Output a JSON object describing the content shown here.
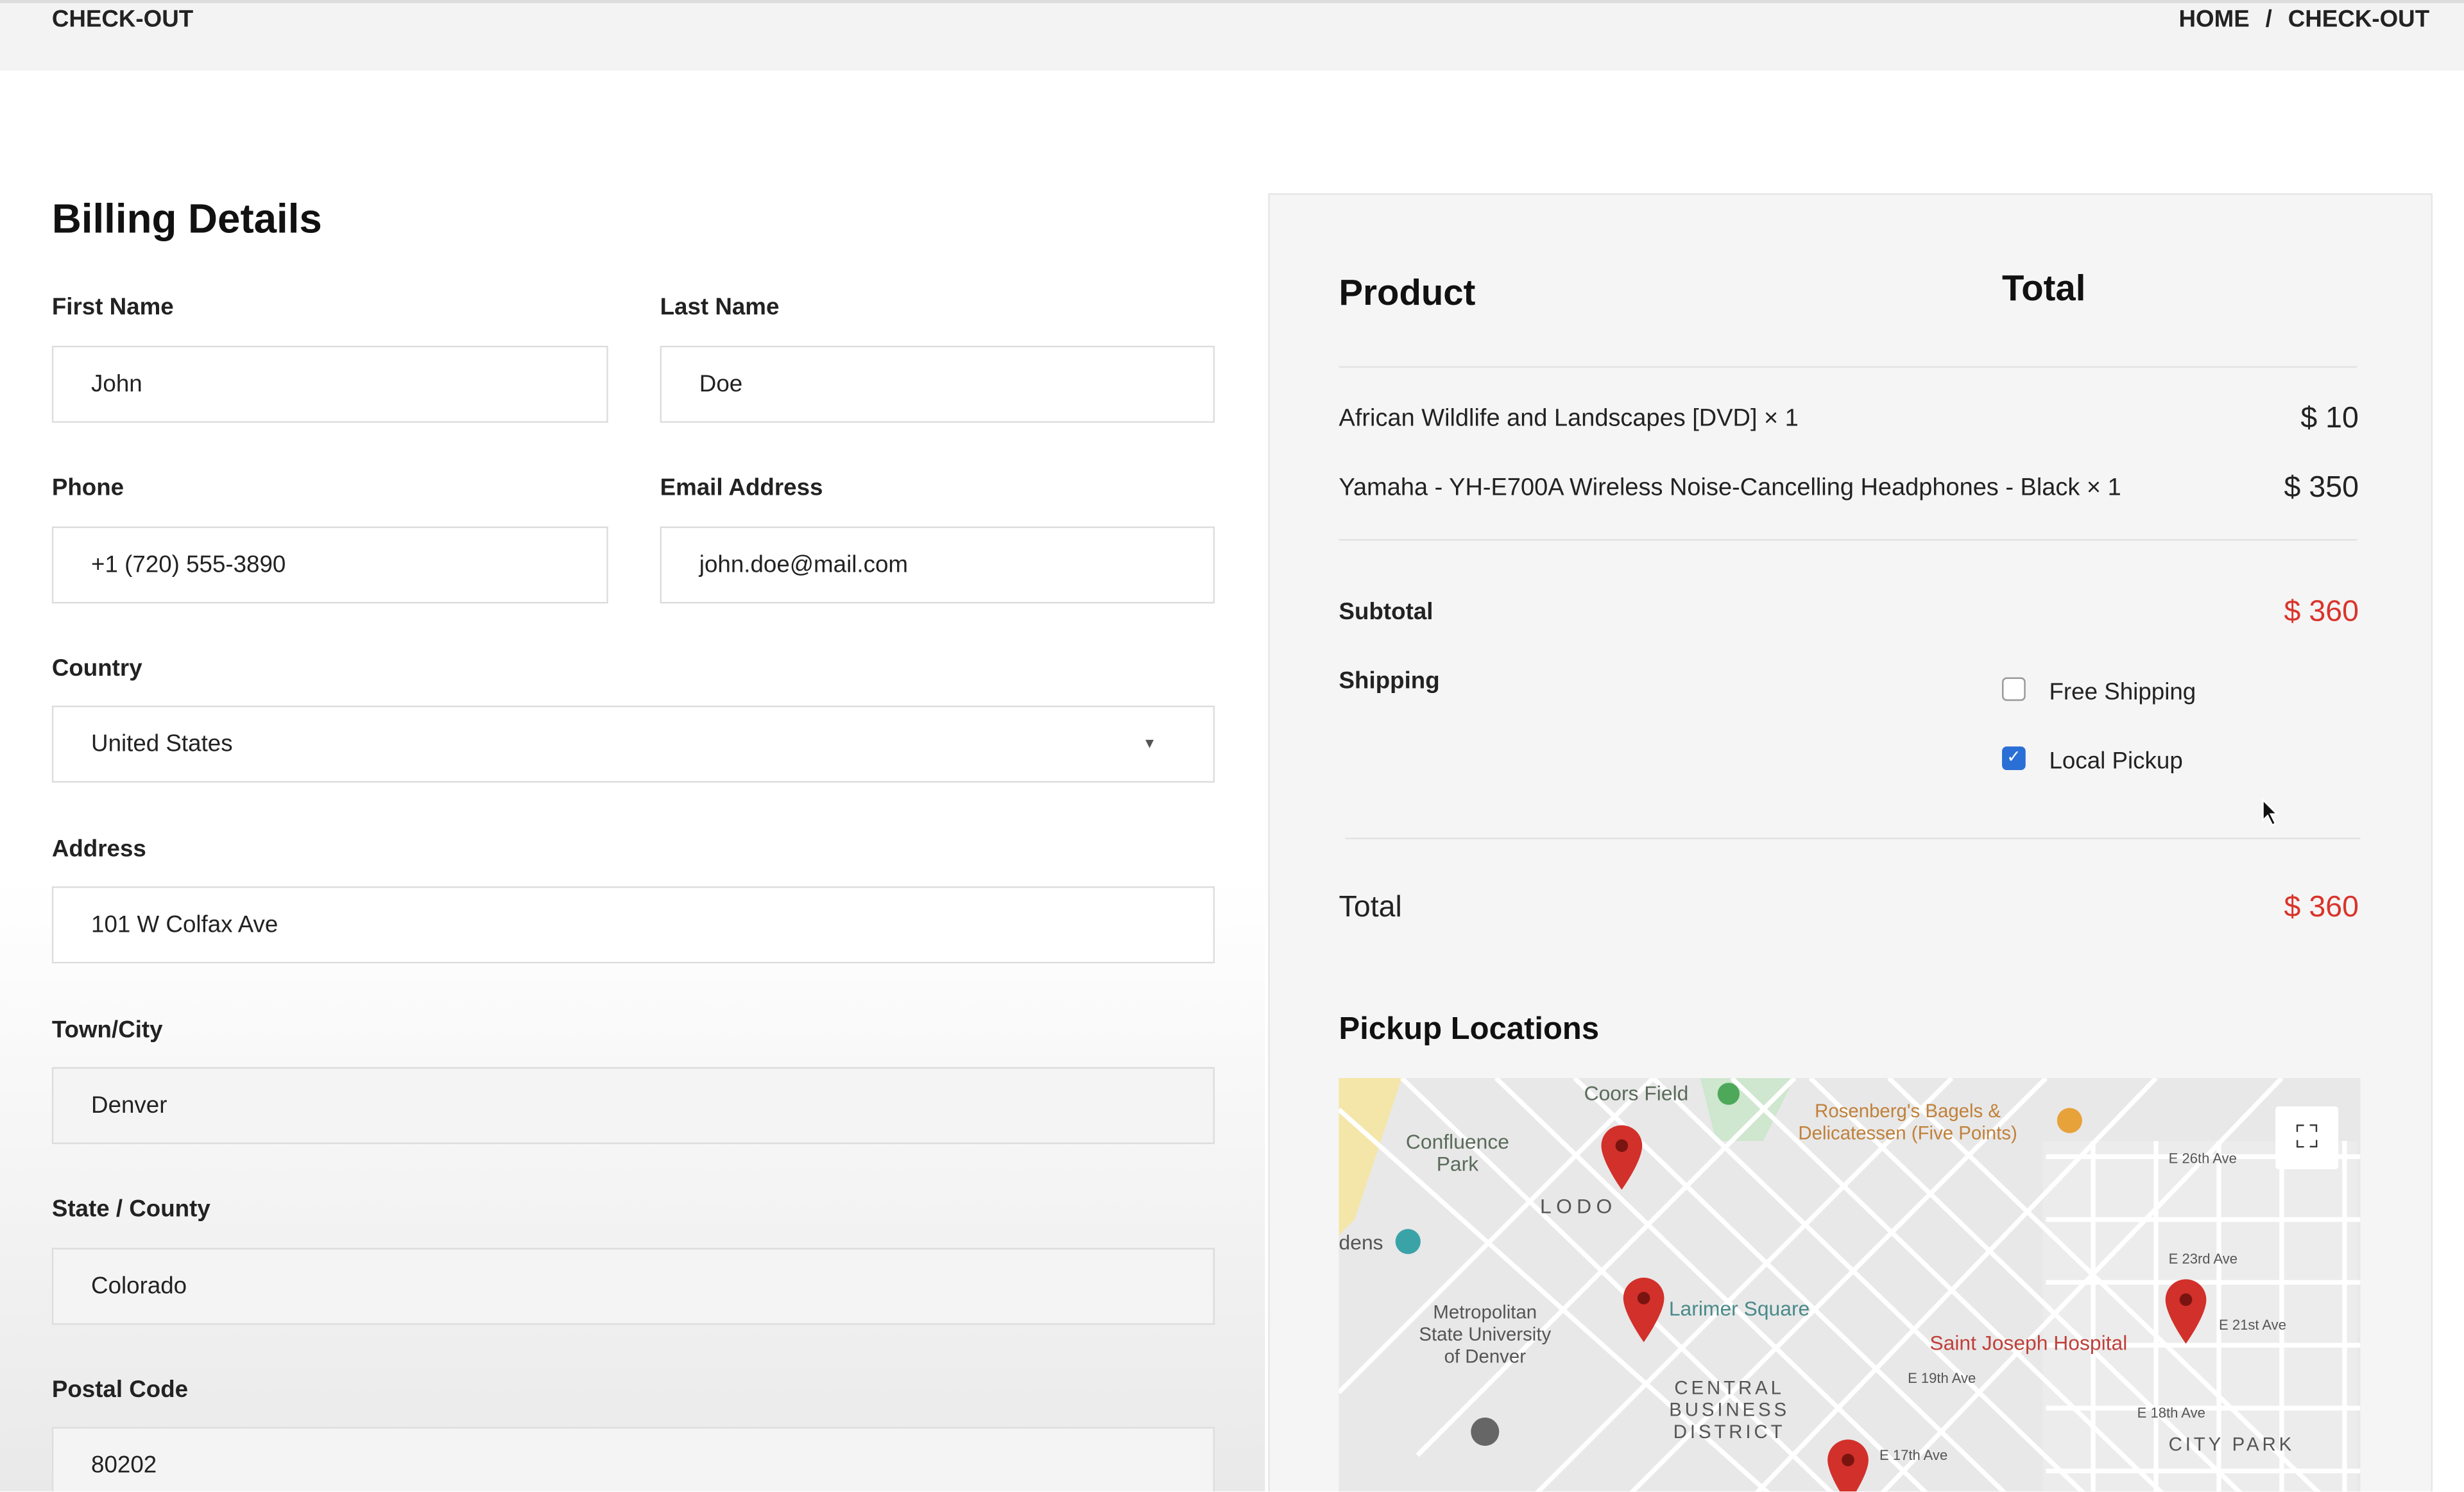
{
  "header": {
    "page_title": "CHECK-OUT",
    "breadcrumb": {
      "home": "HOME",
      "separator": "/",
      "current": "CHECK-OUT"
    }
  },
  "billing": {
    "title": "Billing Details",
    "first_name": {
      "label": "First Name",
      "value": "John"
    },
    "last_name": {
      "label": "Last Name",
      "value": "Doe"
    },
    "phone": {
      "label": "Phone",
      "value": "+1 (720) 555-3890"
    },
    "email": {
      "label": "Email Address",
      "value": "john.doe@mail.com"
    },
    "country": {
      "label": "Country",
      "value": "United States"
    },
    "address": {
      "label": "Address",
      "value": "101 W Colfax Ave"
    },
    "city": {
      "label": "Town/City",
      "value": "Denver"
    },
    "state": {
      "label": "State / County",
      "value": "Colorado"
    },
    "postal": {
      "label": "Postal Code",
      "value": "80202"
    }
  },
  "order": {
    "product_header": "Product",
    "total_header": "Total",
    "items": [
      {
        "name": "African Wildlife and Landscapes [DVD] × 1",
        "price": "$ 10"
      },
      {
        "name": "Yamaha - YH-E700A Wireless Noise-Cancelling Headphones - Black × 1",
        "price": "$ 350"
      }
    ],
    "subtotal_label": "Subtotal",
    "subtotal": "$ 360",
    "shipping_label": "Shipping",
    "shipping_options": [
      {
        "label": "Free Shipping",
        "checked": false
      },
      {
        "label": "Local Pickup",
        "checked": true
      }
    ],
    "total_label": "Total",
    "total": "$ 360",
    "accent_color": "#d9342b"
  },
  "pickup": {
    "title": "Pickup Locations",
    "map_labels": [
      "Coors Field",
      "Rosenberg's Bagels & Delicatessen (Five Points)",
      "Confluence Park",
      "LODO",
      "Larimer Square",
      "Metropolitan State University of Denver",
      "CENTRAL BUSINESS DISTRICT",
      "Saint Joseph Hospital",
      "CITY PARK",
      "E 26th Ave",
      "E 23rd Ave",
      "E 21st Ave",
      "E 19th Ave",
      "E 18th Ave",
      "E 17th Ave",
      "dens"
    ]
  }
}
